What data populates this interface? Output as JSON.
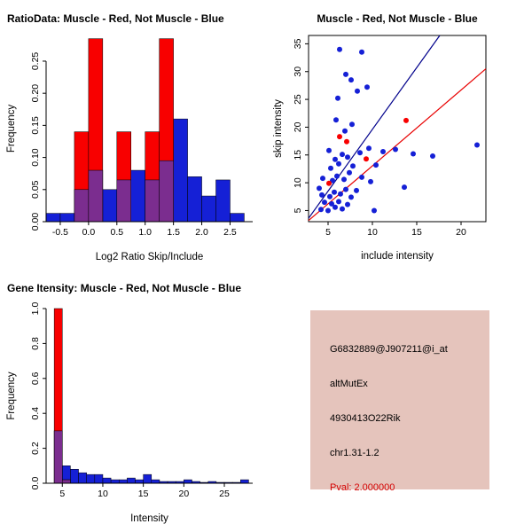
{
  "colors": {
    "blue": "#1520D6",
    "red": "#F80000",
    "overlap": "#7B2D8F",
    "navy": "#00008B",
    "red_line": "#E80000",
    "axis": "#000000",
    "info_pval": "#D40000",
    "info_background": "#E5C4BC"
  },
  "panels": {
    "info_box": {
      "background": "#E5C4BC",
      "lines": [
        {
          "text": "G6832889@J907211@i_at",
          "color": "#000000"
        },
        {
          "text": "altMutEx",
          "color": "#000000"
        },
        {
          "text": "4930413O22Rik",
          "color": "#000000"
        },
        {
          "text": "chr1.31-1.2",
          "color": "#000000"
        },
        {
          "text": "Pval: 2.000000",
          "color": "#D40000"
        }
      ]
    }
  },
  "chart_data": [
    {
      "id": "ratio_histogram",
      "type": "histogram",
      "title": "RatioData: Muscle - Red, Not Muscle - Blue",
      "xlabel": "Log2 Ratio Skip/Include",
      "ylabel": "Frequency",
      "xlim": [
        -0.75,
        2.9
      ],
      "ylim": [
        0,
        0.29
      ],
      "grid": false,
      "xticks": [
        [
          -0.5,
          "-0.5"
        ],
        [
          0,
          "0.0"
        ],
        [
          0.5,
          "0.5"
        ],
        [
          1,
          "1.0"
        ],
        [
          1.5,
          "1.5"
        ],
        [
          2,
          "2.0"
        ],
        [
          2.5,
          "2.5"
        ]
      ],
      "yticks": [
        [
          0,
          "0.00"
        ],
        [
          0.05,
          "0.05"
        ],
        [
          0.1,
          "0.10"
        ],
        [
          0.15,
          "0.15"
        ],
        [
          0.2,
          "0.20"
        ],
        [
          0.25,
          "0.25"
        ]
      ],
      "bin_width": 0.25,
      "series": [
        {
          "name": "Not Muscle",
          "color_key": "blue",
          "bins": [
            [
              -0.75,
              0.013
            ],
            [
              -0.5,
              0.013
            ],
            [
              -0.25,
              0.05
            ],
            [
              0,
              0.08
            ],
            [
              0.25,
              0.05
            ],
            [
              0.5,
              0.065
            ],
            [
              0.75,
              0.08
            ],
            [
              1,
              0.065
            ],
            [
              1.25,
              0.095
            ],
            [
              1.5,
              0.16
            ],
            [
              1.75,
              0.07
            ],
            [
              2,
              0.04
            ],
            [
              2.25,
              0.065
            ],
            [
              2.5,
              0.013
            ]
          ]
        },
        {
          "name": "Muscle",
          "color_key": "red",
          "bins": [
            [
              -0.25,
              0.14
            ],
            [
              0,
              0.285
            ],
            [
              0.5,
              0.14
            ],
            [
              1,
              0.14
            ],
            [
              1.25,
              0.285
            ]
          ]
        }
      ]
    },
    {
      "id": "intensity_scatter",
      "type": "scatter",
      "title": "Muscle - Red, Not Muscle - Blue",
      "xlabel": "include intensity",
      "ylabel": "skip intensity",
      "xlim": [
        2.8,
        22.8
      ],
      "ylim": [
        3,
        36.5
      ],
      "grid": false,
      "xticks": [
        [
          5,
          "5"
        ],
        [
          10,
          "10"
        ],
        [
          15,
          "15"
        ],
        [
          20,
          "20"
        ]
      ],
      "yticks": [
        [
          5,
          "5"
        ],
        [
          10,
          "10"
        ],
        [
          15,
          "15"
        ],
        [
          20,
          "20"
        ],
        [
          25,
          "25"
        ],
        [
          30,
          "30"
        ],
        [
          35,
          "35"
        ]
      ],
      "series": [
        {
          "name": "Not Muscle",
          "color_key": "blue",
          "points": [
            [
              6.3,
              34
            ],
            [
              8.8,
              33.5
            ],
            [
              7,
              29.5
            ],
            [
              7.6,
              28.5
            ],
            [
              8.3,
              26.5
            ],
            [
              9.4,
              27.2
            ],
            [
              6.1,
              25.2
            ],
            [
              5.9,
              21.3
            ],
            [
              7.7,
              20.5
            ],
            [
              6.9,
              19.3
            ],
            [
              5.1,
              15.8
            ],
            [
              6.6,
              15.1
            ],
            [
              7.2,
              14.6
            ],
            [
              8.6,
              15.4
            ],
            [
              9.6,
              16.2
            ],
            [
              5.8,
              14.2
            ],
            [
              6.2,
              13.4
            ],
            [
              7.8,
              13
            ],
            [
              5.3,
              12.6
            ],
            [
              7.4,
              11.8
            ],
            [
              6,
              11.2
            ],
            [
              8.8,
              11
            ],
            [
              4.4,
              10.8
            ],
            [
              6.8,
              10.6
            ],
            [
              5.5,
              10.4
            ],
            [
              9.8,
              10.2
            ],
            [
              4,
              9
            ],
            [
              5.7,
              8.3
            ],
            [
              6.4,
              8
            ],
            [
              7,
              8.8
            ],
            [
              8.2,
              8.6
            ],
            [
              4.3,
              7.8
            ],
            [
              5.2,
              7.5
            ],
            [
              7.6,
              7.4
            ],
            [
              4.6,
              6.5
            ],
            [
              5.4,
              6.2
            ],
            [
              6.2,
              6.6
            ],
            [
              7.2,
              6.1
            ],
            [
              4.2,
              5.2
            ],
            [
              5,
              5
            ],
            [
              5.8,
              5.6
            ],
            [
              6.6,
              5.3
            ],
            [
              10.2,
              5
            ],
            [
              10.4,
              13.2
            ],
            [
              11.2,
              15.6
            ],
            [
              12.6,
              16
            ],
            [
              14.6,
              15.2
            ],
            [
              16.8,
              14.8
            ],
            [
              21.8,
              16.8
            ],
            [
              13.6,
              9.2
            ]
          ]
        },
        {
          "name": "Muscle",
          "color_key": "red",
          "points": [
            [
              6.3,
              18.3
            ],
            [
              7.1,
              17.4
            ],
            [
              9.3,
              14.3
            ],
            [
              13.8,
              21.2
            ],
            [
              5.1,
              9.9
            ]
          ]
        }
      ],
      "fit_lines": [
        {
          "name": "not-muscle-fit",
          "color_key": "navy",
          "p1": [
            2.8,
            3.6
          ],
          "p2": [
            17.6,
            36.5
          ]
        },
        {
          "name": "muscle-fit",
          "color_key": "red_line",
          "p1": [
            2.8,
            3.2
          ],
          "p2": [
            22.8,
            30.5
          ]
        }
      ]
    },
    {
      "id": "gene_intensity_histogram",
      "type": "histogram",
      "title": "Gene Itensity: Muscle - Red, Not Muscle - Blue",
      "xlabel": "Intensity",
      "ylabel": "Frequency",
      "xlim": [
        3,
        28.5
      ],
      "ylim": [
        0,
        1
      ],
      "grid": false,
      "xticks": [
        [
          5,
          "5"
        ],
        [
          10,
          "10"
        ],
        [
          15,
          "15"
        ],
        [
          20,
          "20"
        ],
        [
          25,
          "25"
        ]
      ],
      "yticks": [
        [
          0,
          "0.0"
        ],
        [
          0.2,
          "0.2"
        ],
        [
          0.4,
          "0.4"
        ],
        [
          0.6,
          "0.6"
        ],
        [
          0.8,
          "0.8"
        ],
        [
          1,
          "1.0"
        ]
      ],
      "bin_width": 1,
      "series": [
        {
          "name": "Not Muscle",
          "color_key": "blue",
          "bins": [
            [
              4,
              0.3
            ],
            [
              5,
              0.1
            ],
            [
              6,
              0.08
            ],
            [
              7,
              0.06
            ],
            [
              8,
              0.05
            ],
            [
              9,
              0.05
            ],
            [
              10,
              0.03
            ],
            [
              11,
              0.02
            ],
            [
              12,
              0.02
            ],
            [
              13,
              0.03
            ],
            [
              14,
              0.02
            ],
            [
              15,
              0.05
            ],
            [
              16,
              0.02
            ],
            [
              17,
              0.01
            ],
            [
              18,
              0.01
            ],
            [
              19,
              0.01
            ],
            [
              20,
              0.02
            ],
            [
              21,
              0.01
            ],
            [
              22,
              0.005
            ],
            [
              23,
              0.01
            ],
            [
              24,
              0.005
            ],
            [
              25,
              0.005
            ],
            [
              26,
              0.005
            ],
            [
              27,
              0.02
            ]
          ]
        },
        {
          "name": "Muscle",
          "color_key": "red",
          "bins": [
            [
              4,
              1.0
            ],
            [
              5,
              0.02
            ]
          ]
        }
      ]
    }
  ]
}
